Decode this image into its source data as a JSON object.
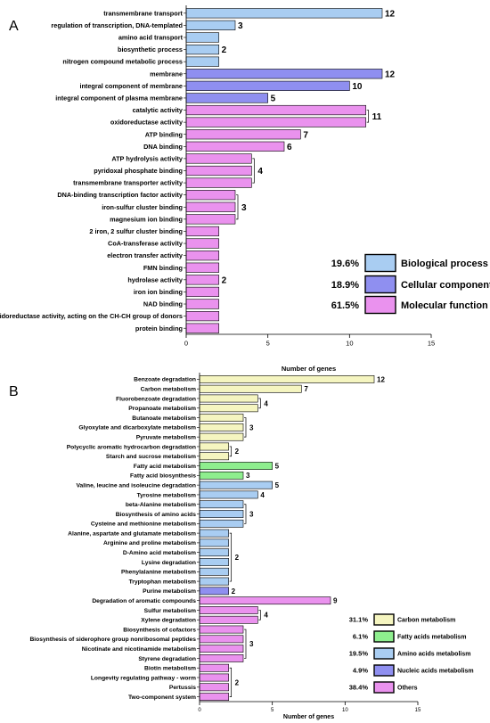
{
  "chart_data": [
    {
      "type": "bar",
      "orientation": "horizontal",
      "panel_label": "A",
      "xlabel": "Number of genes",
      "xlim": [
        0,
        15
      ],
      "xticks": [
        0,
        5,
        10,
        15
      ],
      "categories": [
        "transmembrane transport",
        "regulation of transcription, DNA-templated",
        "amino acid transport",
        "biosynthetic process",
        "nitrogen compound metabolic process",
        "membrane",
        "integral component of membrane",
        "integral component of plasma membrane",
        "catalytic activity",
        "oxidoreductase activity",
        "ATP binding",
        "DNA binding",
        "ATP hydrolysis activity",
        "pyridoxal phosphate binding",
        "transmembrane transporter activity",
        "DNA-binding transcription factor activity",
        "iron-sulfur cluster binding",
        "magnesium ion binding",
        "2 iron, 2 sulfur cluster binding",
        "CoA-transferase activity",
        "electron transfer activity",
        "FMN binding",
        "hydrolase activity",
        "iron ion binding",
        "NAD binding",
        "oxidoreductase activity, acting on the CH-CH group of donors",
        "protein binding"
      ],
      "values": [
        12,
        3,
        2,
        2,
        2,
        12,
        10,
        5,
        11,
        11,
        7,
        6,
        4,
        4,
        4,
        3,
        3,
        3,
        2,
        2,
        2,
        2,
        2,
        2,
        2,
        2,
        2
      ],
      "groups": [
        0,
        0,
        0,
        0,
        0,
        1,
        1,
        1,
        2,
        2,
        2,
        2,
        2,
        2,
        2,
        2,
        2,
        2,
        2,
        2,
        2,
        2,
        2,
        2,
        2,
        2,
        2
      ],
      "value_labels": [
        {
          "index": 0,
          "text": "12"
        },
        {
          "index": 1,
          "text": "3"
        },
        {
          "index": 3,
          "text": "2"
        },
        {
          "index": 5,
          "text": "12"
        },
        {
          "index": 6,
          "text": "10"
        },
        {
          "index": 7,
          "text": "5"
        },
        {
          "index": 9,
          "text": "11",
          "span": [
            8,
            9
          ]
        },
        {
          "index": 10,
          "text": "7"
        },
        {
          "index": 11,
          "text": "6"
        },
        {
          "index": 13,
          "text": "4",
          "span": [
            12,
            14
          ]
        },
        {
          "index": 16,
          "text": "3",
          "span": [
            15,
            17
          ]
        },
        {
          "index": 22,
          "text": "2"
        }
      ],
      "legend": {
        "placement": "bottom-right",
        "entries": [
          {
            "pct": "19.6%",
            "name": "Biological process",
            "color": "#a9cdf2"
          },
          {
            "pct": "18.9%",
            "name": "Cellular component",
            "color": "#8f8ff0"
          },
          {
            "pct": "61.5%",
            "name": "Molecular function",
            "color": "#ea92ee"
          }
        ]
      }
    },
    {
      "type": "bar",
      "orientation": "horizontal",
      "panel_label": "B",
      "xlabel": "Number of genes",
      "xlim": [
        0,
        15
      ],
      "xticks": [
        0,
        5,
        10,
        15
      ],
      "categories": [
        "Benzoate degradation",
        "Carbon metabolism",
        "Fluorobenzoate degradation",
        "Propanoate metabolism",
        "Butanoate metabolism",
        "Glyoxylate and dicarboxylate metabolism",
        "Pyruvate metabolism",
        "Polycyclic aromatic hydrocarbon degradation",
        "Starch and sucrose metabolism",
        "Fatty acid metabolism",
        "Fatty acid biosynthesis",
        "Valine, leucine and isoleucine degradation",
        "Tyrosine metabolism",
        "beta-Alanine metabolism",
        "Biosynthesis of amino acids",
        "Cysteine and methionine metabolism",
        "Alanine, aspartate and glutamate metabolism",
        "Arginine and proline metabolism",
        "D-Amino acid metabolism",
        "Lysine degradation",
        "Phenylalanine metabolism",
        "Tryptophan metabolism",
        "Purine metabolism",
        "Degradation of aromatic compounds",
        "Sulfur metabolism",
        "Xylene degradation",
        "Biosynthesis of cofactors",
        "Biosynthesis of siderophore group nonribosomal peptides",
        "Nicotinate and nicotinamide metabolism",
        "Styrene degradation",
        "Biotin metabolism",
        "Longevity regulating pathway - worm",
        "Pertussis",
        "Two-component system"
      ],
      "values": [
        12,
        7,
        4,
        4,
        3,
        3,
        3,
        2,
        2,
        5,
        3,
        5,
        4,
        3,
        3,
        3,
        2,
        2,
        2,
        2,
        2,
        2,
        2,
        9,
        4,
        4,
        3,
        3,
        3,
        3,
        2,
        2,
        2,
        2
      ],
      "groups": [
        0,
        0,
        0,
        0,
        0,
        0,
        0,
        0,
        0,
        1,
        1,
        2,
        2,
        2,
        2,
        2,
        2,
        2,
        2,
        2,
        2,
        2,
        3,
        4,
        4,
        4,
        4,
        4,
        4,
        4,
        4,
        4,
        4,
        4
      ],
      "value_labels": [
        {
          "index": 0,
          "text": "12"
        },
        {
          "index": 1,
          "text": "7"
        },
        {
          "index": 2,
          "text": "4",
          "span": [
            2,
            3
          ]
        },
        {
          "index": 5,
          "text": "3",
          "span": [
            4,
            6
          ]
        },
        {
          "index": 7,
          "text": "2",
          "span": [
            7,
            8
          ]
        },
        {
          "index": 9,
          "text": "5"
        },
        {
          "index": 10,
          "text": "3"
        },
        {
          "index": 11,
          "text": "5"
        },
        {
          "index": 12,
          "text": "4"
        },
        {
          "index": 14,
          "text": "3",
          "span": [
            13,
            15
          ]
        },
        {
          "index": 19,
          "text": "2",
          "span": [
            16,
            21
          ]
        },
        {
          "index": 22,
          "text": "2"
        },
        {
          "index": 23,
          "text": "9"
        },
        {
          "index": 25,
          "text": "4",
          "span": [
            24,
            25
          ]
        },
        {
          "index": 28,
          "text": "3",
          "span": [
            26,
            29
          ]
        },
        {
          "index": 31,
          "text": "2",
          "span": [
            30,
            33
          ]
        }
      ],
      "legend": {
        "placement": "bottom-right",
        "entries": [
          {
            "pct": "31.1%",
            "name": "Carbon metabolism",
            "color": "#f5f5c0"
          },
          {
            "pct": "6.1%",
            "name": "Fatty acids metabolism",
            "color": "#8eee8e"
          },
          {
            "pct": "19.5%",
            "name": "Amino acids metabolism",
            "color": "#a9cdf2"
          },
          {
            "pct": "4.9%",
            "name": "Nucleic acids metabolism",
            "color": "#8f8ff0"
          },
          {
            "pct": "38.4%",
            "name": "Others",
            "color": "#ea92ee"
          }
        ]
      }
    }
  ]
}
